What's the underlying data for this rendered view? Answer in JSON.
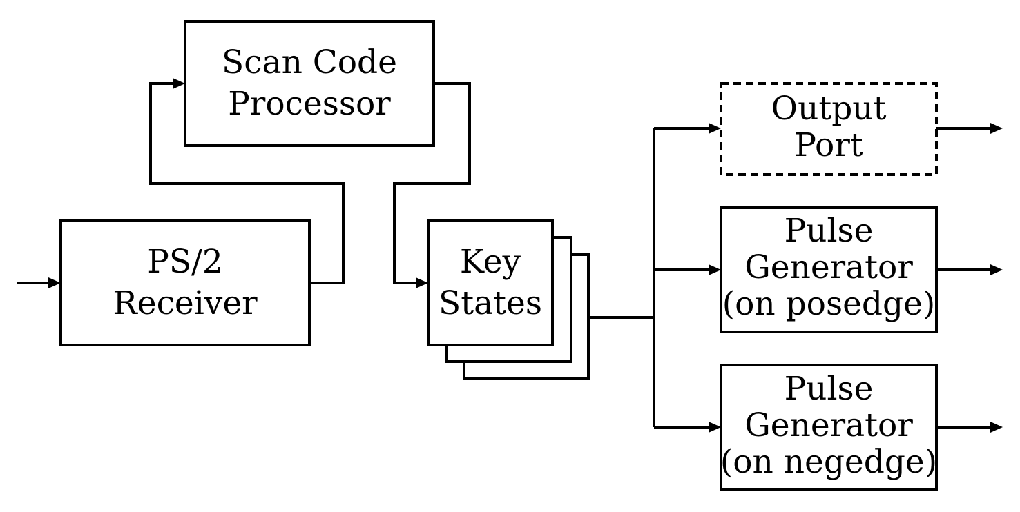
{
  "blocks": {
    "scan_code_processor": {
      "line1": "Scan Code",
      "line2": "Processor"
    },
    "ps2_receiver": {
      "line1": "PS/2",
      "line2": "Receiver"
    },
    "key_states": {
      "line1": "Key",
      "line2": "States"
    },
    "output_port": {
      "line1": "Output",
      "line2": "Port"
    },
    "pulse_generator_posedge": {
      "line1": "Pulse",
      "line2": "Generator",
      "line3": "(on posedge)"
    },
    "pulse_generator_negedge": {
      "line1": "Pulse",
      "line2": "Generator",
      "line3": "(on negedge)"
    }
  },
  "style": {
    "stroke_color": "#000000",
    "background": "#ffffff"
  }
}
